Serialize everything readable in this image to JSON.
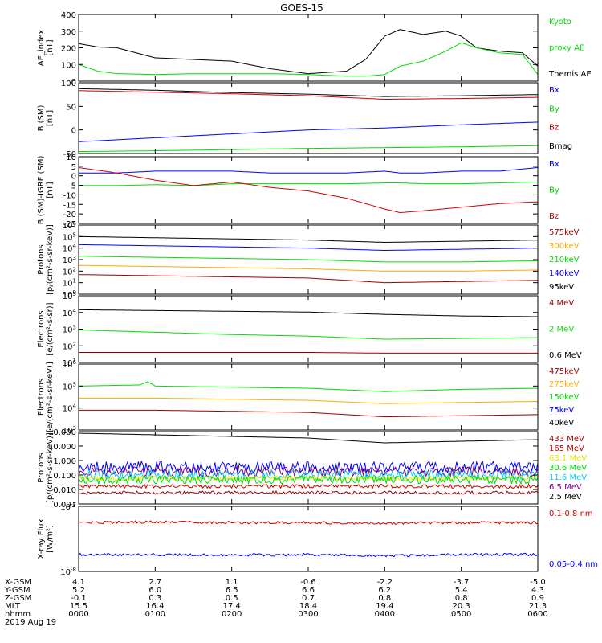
{
  "title": "GOES-15",
  "date": "2019 Aug 19",
  "colors": {
    "black": "#000000",
    "green": "#00dd00",
    "blue": "#0000ff",
    "red": "#cc0000",
    "orange": "#ffaa00",
    "cyan": "#00c8ff",
    "yellow": "#e8e800",
    "purple": "#800080",
    "darkred": "#990000"
  },
  "chart_data": [
    {
      "type": "line",
      "ylabel": [
        "AE_index",
        "[nT]"
      ],
      "yticks": [
        "400",
        "300",
        "200",
        "100",
        "0"
      ],
      "ylim": [
        0,
        400
      ],
      "yscale": "linear",
      "legend": [
        {
          "text": "Kyoto",
          "color": "green"
        },
        {
          "text": "proxy AE",
          "color": "green"
        },
        {
          "text": "Themis AE",
          "color": "black"
        }
      ],
      "x_hours": [
        0,
        0.25,
        0.5,
        1,
        1.5,
        2,
        2.5,
        3,
        3.5,
        3.75,
        4,
        4.2,
        4.5,
        4.8,
        5,
        5.2,
        5.5,
        5.8,
        6
      ],
      "series": [
        {
          "color": "black",
          "values": [
            225,
            205,
            200,
            140,
            130,
            120,
            75,
            45,
            60,
            130,
            270,
            310,
            280,
            300,
            270,
            200,
            180,
            170,
            90
          ]
        },
        {
          "color": "green",
          "values": [
            100,
            60,
            45,
            40,
            45,
            45,
            45,
            40,
            30,
            30,
            40,
            90,
            120,
            180,
            230,
            200,
            170,
            160,
            40
          ]
        }
      ]
    },
    {
      "type": "line",
      "ylabel": [
        "B (SM)",
        "[nT]"
      ],
      "yticks": [
        "100",
        "50",
        "0",
        "-50"
      ],
      "ylim": [
        -55,
        125
      ],
      "yscale": "linear",
      "legend": [
        {
          "text": "Bx",
          "color": "blue"
        },
        {
          "text": "By",
          "color": "green"
        },
        {
          "text": "Bz",
          "color": "red"
        },
        {
          "text": "Bmag",
          "color": "black"
        }
      ],
      "x_hours": [
        0,
        1,
        2,
        3,
        4,
        5,
        6
      ],
      "series": [
        {
          "color": "black",
          "values": [
            110,
            106,
            100,
            96,
            90,
            92,
            95
          ]
        },
        {
          "color": "red",
          "values": [
            105,
            101,
            97,
            92,
            83,
            85,
            88
          ]
        },
        {
          "color": "blue",
          "values": [
            -25,
            -15,
            -5,
            5,
            10,
            18,
            25
          ]
        },
        {
          "color": "green",
          "values": [
            -50,
            -48,
            -45,
            -42,
            -40,
            -38,
            -35
          ]
        }
      ]
    },
    {
      "type": "line",
      "ylabel": [
        "B (SM)-IGRF (SM)",
        "[nT]"
      ],
      "yticks": [
        "10",
        "5",
        "0",
        "-5",
        "-10",
        "-15",
        "-20",
        "-25"
      ],
      "ylim": [
        -26,
        11
      ],
      "yscale": "linear",
      "legend": [
        {
          "text": "Bx",
          "color": "blue"
        },
        {
          "text": "By",
          "color": "green"
        },
        {
          "text": "Bz",
          "color": "red"
        }
      ],
      "x_hours": [
        0,
        0.5,
        1,
        1.5,
        2,
        2.5,
        3,
        3.5,
        4,
        4.2,
        4.5,
        5,
        5.5,
        6
      ],
      "series": [
        {
          "color": "blue",
          "values": [
            2,
            2,
            3,
            3,
            3,
            2,
            2,
            2,
            3,
            2,
            2,
            3,
            3,
            5
          ]
        },
        {
          "color": "green",
          "values": [
            -5,
            -5,
            -4.5,
            -5,
            -4,
            -4,
            -4,
            -4,
            -3.5,
            -3.5,
            -4,
            -4,
            -3.5,
            -3
          ]
        },
        {
          "color": "red",
          "values": [
            5,
            2,
            -2,
            -5,
            -3,
            -6,
            -8,
            -12,
            -18,
            -20,
            -19,
            -17,
            -15,
            -14
          ]
        }
      ]
    },
    {
      "type": "line",
      "ylabel": [
        "Protons",
        "[p/(cm²-s-sr-keV)]"
      ],
      "yticks": [
        "10^6",
        "10^5",
        "10^4",
        "10^3",
        "10^2",
        "10^1",
        "10^0"
      ],
      "ylim": [
        0,
        6
      ],
      "yscale": "log10",
      "legend": [
        {
          "text": "575keV",
          "color": "darkred"
        },
        {
          "text": "300keV",
          "color": "orange"
        },
        {
          "text": "210keV",
          "color": "green"
        },
        {
          "text": "140keV",
          "color": "blue"
        },
        {
          "text": "95keV",
          "color": "black"
        }
      ],
      "x_hours": [
        0,
        1,
        2,
        3,
        4,
        5,
        6
      ],
      "series": [
        {
          "color": "black",
          "values": [
            5.0,
            4.9,
            4.8,
            4.7,
            4.5,
            4.6,
            4.7
          ]
        },
        {
          "color": "blue",
          "values": [
            4.3,
            4.2,
            4.1,
            4.0,
            3.8,
            3.9,
            4.0
          ]
        },
        {
          "color": "green",
          "values": [
            3.3,
            3.2,
            3.1,
            3.0,
            2.8,
            2.8,
            2.9
          ]
        },
        {
          "color": "orange",
          "values": [
            2.5,
            2.4,
            2.3,
            2.2,
            2.0,
            2.0,
            2.1
          ]
        },
        {
          "color": "darkred",
          "values": [
            1.7,
            1.6,
            1.5,
            1.4,
            1.0,
            1.1,
            1.2
          ]
        }
      ]
    },
    {
      "type": "line",
      "ylabel": [
        "Electrons",
        "[e/(cm²-s-sr)]"
      ],
      "yticks": [
        "10^5",
        "10^4",
        "10^3",
        "10^2",
        "10^1"
      ],
      "ylim": [
        0.7,
        5
      ],
      "yscale": "log10",
      "legend": [
        {
          "text": "4 MeV",
          "color": "darkred"
        },
        {
          "text": "2 MeV",
          "color": "green"
        },
        {
          "text": "0.6 MeV",
          "color": "black"
        }
      ],
      "x_hours": [
        0,
        1,
        2,
        3,
        4,
        5,
        6
      ],
      "series": [
        {
          "color": "black",
          "values": [
            4.1,
            4.05,
            4.0,
            3.95,
            3.8,
            3.7,
            3.65
          ]
        },
        {
          "color": "green",
          "values": [
            2.8,
            2.65,
            2.5,
            2.4,
            2.2,
            2.25,
            2.3
          ]
        },
        {
          "color": "darkred",
          "values": [
            1.35,
            1.35,
            1.35,
            1.35,
            1.3,
            1.3,
            1.3
          ]
        }
      ]
    },
    {
      "type": "line",
      "ylabel": [
        "Electrons",
        "[e/(cm²-s-sr-keV)]"
      ],
      "yticks": [
        "10^6",
        "10^5",
        "10^4",
        "10^3"
      ],
      "ylim": [
        3,
        6
      ],
      "yscale": "log10",
      "legend": [
        {
          "text": "475keV",
          "color": "darkred"
        },
        {
          "text": "275keV",
          "color": "orange"
        },
        {
          "text": "150keV",
          "color": "green"
        },
        {
          "text": "75keV",
          "color": "blue"
        },
        {
          "text": "40keV",
          "color": "black"
        }
      ],
      "x_hours": [
        0,
        0.8,
        0.9,
        1.0,
        2,
        3,
        4,
        5,
        6
      ],
      "series": [
        {
          "color": "green",
          "values": [
            5.0,
            5.05,
            5.2,
            5.0,
            4.95,
            4.9,
            4.75,
            4.85,
            4.9
          ]
        },
        {
          "color": "orange",
          "values": [
            4.45,
            4.45,
            4.45,
            4.45,
            4.4,
            4.35,
            4.2,
            4.25,
            4.3
          ]
        },
        {
          "color": "darkred",
          "values": [
            3.9,
            3.9,
            3.9,
            3.9,
            3.85,
            3.8,
            3.6,
            3.65,
            3.7
          ]
        }
      ]
    },
    {
      "type": "line",
      "ylabel": [
        "Protons",
        "[p/(cm²-s-sr-keV)]"
      ],
      "yticks": [
        "10.000",
        "10.000",
        "1.000",
        "0.100",
        "0.010",
        "0.001"
      ],
      "ylim": [
        -3.2,
        1.3
      ],
      "yscale": "log10",
      "legend": [
        {
          "text": "433 MeV",
          "color": "darkred"
        },
        {
          "text": "165 MeV",
          "color": "red"
        },
        {
          "text": "63.1 MeV",
          "color": "yellow"
        },
        {
          "text": "30.6 MeV",
          "color": "green"
        },
        {
          "text": "11.6 MeV",
          "color": "cyan"
        },
        {
          "text": "6.5 MeV",
          "color": "purple"
        },
        {
          "text": "2.5 MeV",
          "color": "black"
        }
      ],
      "x_hours": [
        0,
        1,
        2,
        3,
        4,
        5,
        6
      ],
      "series": [
        {
          "color": "black",
          "values": [
            1.2,
            1.1,
            1.0,
            0.9,
            0.6,
            0.7,
            0.8
          ]
        },
        {
          "color": "blue",
          "values": [
            -0.9,
            -0.9,
            -0.9,
            -0.9,
            -0.9,
            -0.9,
            -0.9
          ],
          "noise": 0.35
        },
        {
          "color": "purple",
          "values": [
            -1.2,
            -1.2,
            -1.2,
            -1.2,
            -1.2,
            -1.2,
            -1.2
          ],
          "noise": 0.3
        },
        {
          "color": "cyan",
          "values": [
            -1.4,
            -1.4,
            -1.4,
            -1.4,
            -1.4,
            -1.4,
            -1.4
          ],
          "noise": 0.3
        },
        {
          "color": "yellow",
          "values": [
            -1.6,
            -1.6,
            -1.6,
            -1.6,
            -1.6,
            -1.6,
            -1.6
          ],
          "noise": 0.15
        },
        {
          "color": "green",
          "values": [
            -1.7,
            -1.7,
            -1.7,
            -1.7,
            -1.7,
            -1.7,
            -1.7
          ],
          "noise": 0.25
        },
        {
          "color": "red",
          "values": [
            -2.1,
            -2.1,
            -2.1,
            -2.1,
            -2.1,
            -2.1,
            -2.1
          ],
          "noise": 0.12
        },
        {
          "color": "darkred",
          "values": [
            -2.5,
            -2.5,
            -2.5,
            -2.5,
            -2.5,
            -2.5,
            -2.5
          ],
          "noise": 0.1
        }
      ]
    },
    {
      "type": "line",
      "ylabel": [
        "X-ray Flux",
        "[W/m²]"
      ],
      "yticks": [
        "10^-7",
        "10^-8"
      ],
      "ylim": [
        -8,
        -7
      ],
      "yscale": "log10",
      "legend": [
        {
          "text": "0.1-0.8 nm",
          "color": "red"
        },
        {
          "text": "0.05-0.4 nm",
          "color": "blue"
        }
      ],
      "x_hours": [
        0,
        1,
        2,
        3,
        4,
        5,
        6
      ],
      "series": [
        {
          "color": "red",
          "values": [
            -7.25,
            -7.24,
            -7.25,
            -7.25,
            -7.26,
            -7.25,
            -7.25
          ],
          "noise": 0.02
        },
        {
          "color": "blue",
          "values": [
            -7.74,
            -7.74,
            -7.75,
            -7.74,
            -7.76,
            -7.74,
            -7.74
          ],
          "noise": 0.02
        }
      ]
    }
  ],
  "footer": {
    "row_labels": [
      "X-GSM",
      "Y-GSM",
      "Z-GSM",
      "MLT",
      "hhmm"
    ],
    "columns": [
      [
        "4.1",
        "5.2",
        "-0.1",
        "15.5",
        "0000"
      ],
      [
        "2.7",
        "6.0",
        "0.3",
        "16.4",
        "0100"
      ],
      [
        "1.1",
        "6.5",
        "0.5",
        "17.4",
        "0200"
      ],
      [
        "-0.6",
        "6.6",
        "0.7",
        "18.4",
        "0300"
      ],
      [
        "-2.2",
        "6.2",
        "0.8",
        "19.4",
        "0400"
      ],
      [
        "-3.7",
        "5.4",
        "0.8",
        "20.3",
        "0500"
      ],
      [
        "-5.0",
        "4.3",
        "0.9",
        "21.3",
        "0600"
      ]
    ]
  }
}
